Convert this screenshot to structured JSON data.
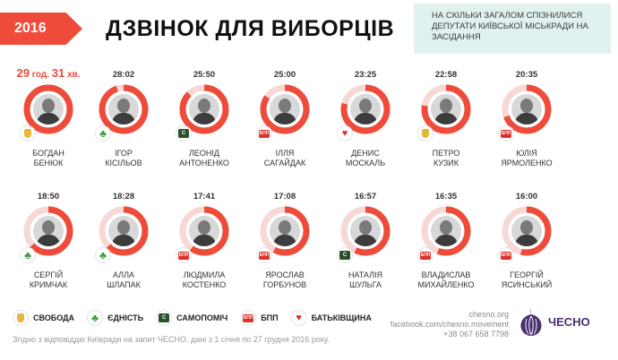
{
  "header": {
    "year": "2016",
    "title": "ДЗВІНОК ДЛЯ ВИБОРЦІВ",
    "subtitle": "НА СКІЛЬКИ ЗАГАЛОМ СПІЗНИЛИСЯ ДЕПУТАТИ КИЇВСЬКОЇ МІСЬКРАДИ НА ЗАСІДАННЯ"
  },
  "colors": {
    "accent": "#ef4b3a",
    "ring_track": "#f6d9d4",
    "svoboda": "#e9b53a",
    "ednist": "#3e9a3c",
    "samopomich": "#2b4e2f",
    "bpp": "#d9322b",
    "batkivshchyna": "#d9322b"
  },
  "people": [
    {
      "time": "29 год. 31 хв.",
      "time_hours": "29",
      "time_h_unit": " год. ",
      "time_min": "31",
      "time_m_unit": " хв.",
      "fraction": 1.0,
      "party": "svoboda",
      "name_first": "БОГДАН",
      "name_last": "БЕНЮК"
    },
    {
      "time": "28:02",
      "fraction": 0.95,
      "party": "ednist",
      "name_first": "ІГОР",
      "name_last": "КІСІЛЬОВ"
    },
    {
      "time": "25:50",
      "fraction": 0.875,
      "party": "samopomich",
      "name_first": "ЛЕОНІД",
      "name_last": "АНТОНЕНКО"
    },
    {
      "time": "25:00",
      "fraction": 0.845,
      "party": "bpp",
      "name_first": "ІЛЛЯ",
      "name_last": "САГАЙДАК"
    },
    {
      "time": "23:25",
      "fraction": 0.79,
      "party": "batkivshchyna",
      "name_first": "ДЕНИС",
      "name_last": "МОСКАЛЬ"
    },
    {
      "time": "22:58",
      "fraction": 0.775,
      "party": "svoboda",
      "name_first": "ПЕТРО",
      "name_last": "КУЗИК"
    },
    {
      "time": "20:35",
      "fraction": 0.695,
      "party": "bpp",
      "name_first": "ЮЛІЯ",
      "name_last": "ЯРМОЛЕНКО"
    },
    {
      "time": "18:50",
      "fraction": 0.635,
      "party": "ednist",
      "name_first": "СЕРГІЙ",
      "name_last": "КРИМЧАК"
    },
    {
      "time": "18:28",
      "fraction": 0.625,
      "party": "ednist",
      "name_first": "АЛЛА",
      "name_last": "ШЛАПАК"
    },
    {
      "time": "17:41",
      "fraction": 0.6,
      "party": "bpp",
      "name_first": "ЛЮДМИЛА",
      "name_last": "КОСТЕНКО"
    },
    {
      "time": "17:08",
      "fraction": 0.58,
      "party": "bpp",
      "name_first": "ЯРОСЛАВ",
      "name_last": "ГОРБУНОВ"
    },
    {
      "time": "16:57",
      "fraction": 0.575,
      "party": "samopomich",
      "name_first": "НАТАЛІЯ",
      "name_last": "ШУЛЬГА"
    },
    {
      "time": "16:35",
      "fraction": 0.56,
      "party": "bpp",
      "name_first": "ВЛАДИСЛАВ",
      "name_last": "МИХАЙЛЕНКО"
    },
    {
      "time": "16:00",
      "fraction": 0.54,
      "party": "bpp",
      "name_first": "ГЕОРГІЙ",
      "name_last": "ЯСИНСЬКИЙ"
    }
  ],
  "legend": [
    {
      "party": "svoboda",
      "label": "СВОБОДА"
    },
    {
      "party": "ednist",
      "label": "ЄДНІСТЬ"
    },
    {
      "party": "samopomich",
      "label": "САМОПОМІЧ"
    },
    {
      "party": "bpp",
      "label": "БПП"
    },
    {
      "party": "batkivshchyna",
      "label": "БАТЬКІВЩИНА"
    }
  ],
  "badge_text": {
    "samopomich": "С",
    "bpp": "БПП"
  },
  "footnote": "Згідно з відповіддю Київради на запит ЧЕСНО. дані з 1 січня по 27 грудня 2016 року.",
  "contacts": {
    "site": "chesno.org",
    "facebook": "facebook.com/chesno.movement",
    "phone": "+38 067 658 7798"
  },
  "logo": {
    "text": "ЧЕСНО"
  }
}
